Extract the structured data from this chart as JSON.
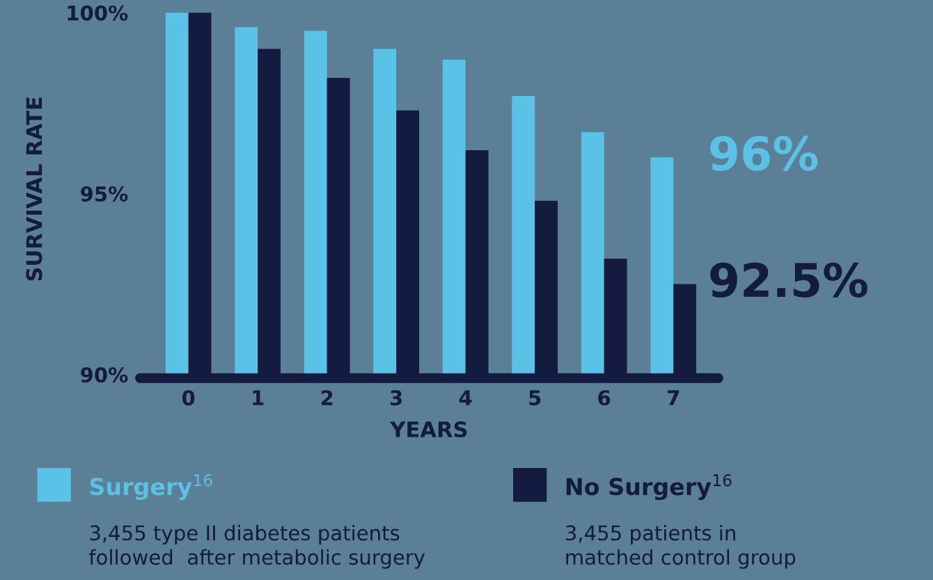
{
  "chart_data": {
    "type": "bar",
    "xlabel": "YEARS",
    "ylabel": "SURVIVAL RATE",
    "categories": [
      "0",
      "1",
      "2",
      "3",
      "4",
      "5",
      "6",
      "7"
    ],
    "series": [
      {
        "name": "Surgery$^{16}$",
        "color": "#5bc2e7",
        "values": [
          100,
          99.6,
          99.5,
          99.0,
          98.7,
          97.7,
          96.7,
          96.0
        ]
      },
      {
        "name": "No Surgery$^{16}$",
        "color": "#131b40",
        "values": [
          100,
          99.0,
          98.2,
          97.3,
          96.2,
          94.8,
          93.2,
          92.5
        ]
      }
    ],
    "ylim": [
      89.9,
      100.35
    ],
    "yticks": [
      {
        "value": 100,
        "label": "100%"
      },
      {
        "value": 95,
        "label": "95%"
      },
      {
        "value": 90,
        "label": "90%"
      }
    ],
    "annotations": [
      {
        "text": "96%",
        "x": "7",
        "y": 96.0
      },
      {
        "text": "92.5%",
        "x": "7",
        "y": 92.5
      },
      "3,455 type II diabetes patients\nfollowed  after metabolic surgery",
      "3,455 patients in\nmatched control group"
    ],
    "grid": false,
    "legend": "bottom"
  }
}
